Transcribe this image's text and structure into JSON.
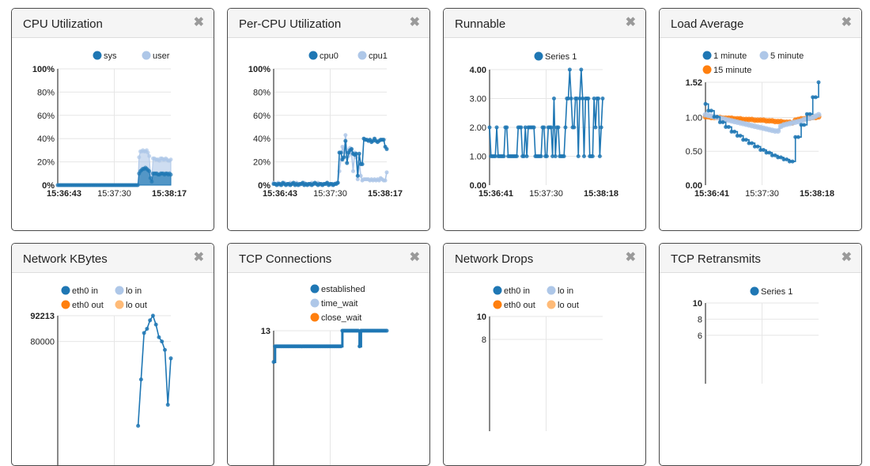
{
  "dashboard": {
    "close_glyph": "✖",
    "cards": [
      {
        "title": "CPU Utilization"
      },
      {
        "title": "Per-CPU Utilization"
      },
      {
        "title": "Runnable"
      },
      {
        "title": "Load Average"
      },
      {
        "title": "Network KBytes"
      },
      {
        "title": "TCP Connections"
      },
      {
        "title": "Network Drops"
      },
      {
        "title": "TCP Retransmits"
      }
    ]
  },
  "colors": {
    "dark_blue": "#1f77b4",
    "light_blue": "#aec7e8",
    "orange": "#ff7f0e",
    "light_orange": "#ffbb78"
  },
  "chart_data": [
    {
      "type": "area",
      "title": "CPU Utilization",
      "legend": [
        {
          "name": "sys",
          "color": "#1f77b4"
        },
        {
          "name": "user",
          "color": "#aec7e8"
        }
      ],
      "x_ticks": [
        "15:36:43",
        "15:37:30",
        "15:38:17"
      ],
      "x_tick_bold": [
        true,
        false,
        true
      ],
      "y_ticks": [
        "100%",
        "80%",
        "60%",
        "40%",
        "20%",
        "0%"
      ],
      "ylim": [
        0,
        100
      ],
      "stacked": true,
      "series": [
        {
          "name": "sys",
          "values": [
            0,
            0,
            0,
            0,
            0,
            0,
            0,
            0,
            0,
            0,
            0,
            0,
            0,
            0,
            0,
            0,
            0,
            0,
            0,
            0,
            0,
            0,
            0,
            0,
            0,
            0,
            0,
            0,
            0,
            0,
            0,
            0,
            0,
            0,
            0,
            0,
            0,
            0,
            0,
            0,
            0,
            0,
            0,
            0,
            0,
            0,
            0,
            0,
            0,
            0,
            0,
            0,
            0,
            0,
            0,
            0,
            0,
            0,
            0,
            0,
            0,
            0,
            0,
            0,
            10,
            12,
            13,
            14,
            14,
            15,
            14,
            13,
            12,
            6,
            3,
            10,
            10,
            10,
            10,
            9,
            9,
            10,
            10,
            10,
            9,
            10,
            10,
            9,
            10,
            9
          ]
        },
        {
          "name": "user",
          "values": [
            0,
            0,
            0,
            0,
            0,
            0,
            0,
            0,
            0,
            0,
            0,
            0,
            0,
            0,
            0,
            0,
            0,
            0,
            0,
            0,
            0,
            0,
            0,
            0,
            0,
            0,
            0,
            0,
            0,
            0,
            0,
            0,
            0,
            0,
            0,
            0,
            0,
            0,
            0,
            0,
            0,
            0,
            0,
            0,
            0,
            0,
            0,
            0,
            0,
            0,
            0,
            0,
            0,
            0,
            0,
            0,
            0,
            0,
            0,
            0,
            0,
            0,
            0,
            0,
            14,
            17,
            16,
            16,
            15,
            14,
            16,
            15,
            13,
            4,
            2,
            13,
            13,
            12,
            12,
            13,
            12,
            13,
            13,
            12,
            13,
            13,
            12,
            12,
            11,
            13
          ]
        }
      ]
    },
    {
      "type": "line",
      "title": "Per-CPU Utilization",
      "legend": [
        {
          "name": "cpu0",
          "color": "#1f77b4"
        },
        {
          "name": "cpu1",
          "color": "#aec7e8"
        }
      ],
      "x_ticks": [
        "15:36:43",
        "15:37:30",
        "15:38:17"
      ],
      "x_tick_bold": [
        true,
        false,
        true
      ],
      "y_ticks": [
        "100%",
        "80%",
        "60%",
        "40%",
        "20%",
        "0%"
      ],
      "ylim": [
        0,
        100
      ],
      "series": [
        {
          "name": "cpu0",
          "values": [
            1,
            1,
            0,
            1,
            1,
            0,
            2,
            1,
            0,
            1,
            1,
            0,
            1,
            2,
            0,
            1,
            0,
            1,
            1,
            2,
            0,
            1,
            0,
            1,
            1,
            0,
            1,
            2,
            1,
            0,
            1,
            1,
            0,
            1,
            1,
            2,
            0,
            1,
            1,
            0,
            1,
            1,
            2,
            28,
            28,
            22,
            24,
            38,
            19,
            28,
            30,
            31,
            27,
            26,
            27,
            8,
            27,
            18,
            18,
            40,
            39,
            39,
            38,
            39,
            37,
            38,
            40,
            38,
            37,
            38,
            39,
            39,
            39,
            33,
            31
          ]
        },
        {
          "name": "cpu1",
          "values": [
            2,
            1,
            1,
            2,
            0,
            1,
            1,
            2,
            1,
            1,
            0,
            2,
            1,
            1,
            1,
            2,
            1,
            0,
            1,
            1,
            2,
            1,
            1,
            1,
            0,
            2,
            1,
            1,
            1,
            2,
            1,
            0,
            1,
            1,
            1,
            2,
            1,
            1,
            0,
            1,
            1,
            2,
            2,
            12,
            22,
            33,
            28,
            43,
            30,
            25,
            32,
            27,
            12,
            28,
            24,
            5,
            20,
            8,
            4,
            5,
            5,
            5,
            5,
            4,
            5,
            4,
            5,
            4,
            5,
            4,
            6,
            5,
            4,
            4,
            11
          ]
        }
      ]
    },
    {
      "type": "line",
      "title": "Runnable",
      "legend": [
        {
          "name": "Series 1",
          "color": "#1f77b4"
        }
      ],
      "x_ticks": [
        "15:36:41",
        "15:37:30",
        "15:38:18"
      ],
      "x_tick_bold": [
        true,
        false,
        true
      ],
      "y_ticks": [
        "4.00",
        "3.00",
        "2.00",
        "1.00",
        "0.00"
      ],
      "y_tick_bold": [
        true,
        false,
        false,
        false,
        true
      ],
      "ylim": [
        0,
        4
      ],
      "series": [
        {
          "name": "Series 1",
          "values": [
            2,
            1,
            1,
            1,
            1,
            2,
            1,
            1,
            1,
            1,
            1,
            2,
            2,
            1,
            1,
            1,
            1,
            1,
            1,
            1,
            2,
            2,
            2,
            1,
            1,
            2,
            1,
            2,
            2,
            2,
            2,
            2,
            1,
            1,
            1,
            1,
            1,
            2,
            2,
            1,
            1,
            2,
            2,
            2,
            1,
            3,
            1,
            2,
            2,
            1,
            1,
            1,
            1,
            2,
            3,
            3,
            4,
            3,
            2,
            2,
            3,
            3,
            1,
            3,
            4,
            3,
            1,
            3,
            3,
            3,
            1,
            1,
            1,
            3,
            2,
            3,
            3,
            1,
            2,
            3
          ]
        }
      ]
    },
    {
      "type": "line",
      "title": "Load Average",
      "legend": [
        {
          "name": "1 minute",
          "color": "#1f77b4"
        },
        {
          "name": "5 minute",
          "color": "#aec7e8"
        },
        {
          "name": "15 minute",
          "color": "#ff7f0e"
        }
      ],
      "x_ticks": [
        "15:36:41",
        "15:37:30",
        "15:38:18"
      ],
      "x_tick_bold": [
        true,
        false,
        true
      ],
      "y_ticks": [
        "1.52",
        "1.00",
        "0.50",
        "0.00"
      ],
      "y_tick_bold": [
        true,
        false,
        false,
        true
      ],
      "ylim": [
        0,
        1.52
      ],
      "series": [
        {
          "name": "1 minute",
          "values": [
            1.2,
            1.1,
            1.1,
            1.01,
            1.01,
            0.93,
            0.93,
            0.86,
            0.86,
            0.79,
            0.79,
            0.73,
            0.73,
            0.67,
            0.67,
            0.62,
            0.62,
            0.57,
            0.57,
            0.52,
            0.52,
            0.48,
            0.48,
            0.44,
            0.44,
            0.41,
            0.41,
            0.38,
            0.38,
            0.35,
            0.35,
            0.71,
            0.71,
            0.89,
            0.89,
            1.05,
            1.05,
            1.3,
            1.3,
            1.52
          ]
        },
        {
          "name": "5 minute",
          "values": [
            1.04,
            1.03,
            1.02,
            1.01,
            1.0,
            0.99,
            0.98,
            0.97,
            0.96,
            0.95,
            0.94,
            0.93,
            0.92,
            0.91,
            0.9,
            0.89,
            0.88,
            0.87,
            0.86,
            0.85,
            0.84,
            0.83,
            0.82,
            0.81,
            0.8,
            0.8,
            0.87,
            0.89,
            0.9,
            0.91,
            0.92,
            0.93,
            0.94,
            0.95,
            0.97,
            0.98,
            0.99,
            1.0,
            1.02,
            1.04
          ]
        },
        {
          "name": "15 minute",
          "values": [
            1.01,
            1.01,
            1.0,
            1.0,
            1.0,
            1.0,
            0.99,
            0.99,
            0.99,
            0.99,
            0.98,
            0.98,
            0.98,
            0.97,
            0.97,
            0.97,
            0.97,
            0.96,
            0.96,
            0.96,
            0.96,
            0.95,
            0.95,
            0.95,
            0.94,
            0.94,
            0.94,
            0.93,
            0.93,
            0.93,
            0.92,
            0.96,
            0.97,
            0.98,
            0.98,
            0.99,
            0.99,
            1.0,
            1.0,
            1.01
          ]
        }
      ]
    },
    {
      "type": "line",
      "title": "Network KBytes",
      "legend": [
        {
          "name": "eth0 in",
          "color": "#1f77b4"
        },
        {
          "name": "lo in",
          "color": "#aec7e8"
        },
        {
          "name": "eth0 out",
          "color": "#ff7f0e"
        },
        {
          "name": "lo out",
          "color": "#ffbb78"
        }
      ],
      "x_ticks": [],
      "y_ticks": [
        "92213",
        "80000"
      ],
      "y_tick_bold": [
        true,
        false
      ],
      "ylim": [
        0,
        92213
      ],
      "series": [
        {
          "name": "eth0 in",
          "values": [
            null,
            null,
            null,
            null,
            null,
            null,
            null,
            null,
            null,
            null,
            null,
            null,
            null,
            null,
            null,
            null,
            null,
            null,
            null,
            null,
            null,
            null,
            null,
            null,
            null,
            null,
            null,
            40000,
            62000,
            84000,
            86000,
            90000,
            92213,
            88000,
            82000,
            80000,
            76000,
            50000,
            72000
          ]
        }
      ]
    },
    {
      "type": "line",
      "title": "TCP Connections",
      "legend": [
        {
          "name": "established",
          "color": "#1f77b4"
        },
        {
          "name": "time_wait",
          "color": "#aec7e8"
        },
        {
          "name": "close_wait",
          "color": "#ff7f0e"
        }
      ],
      "x_ticks": [],
      "y_ticks": [
        "13"
      ],
      "y_tick_bold": [
        true
      ],
      "ylim": [
        0,
        13
      ],
      "series": [
        {
          "name": "established",
          "values": [
            11,
            12,
            12,
            12,
            12,
            12,
            12,
            12,
            12,
            12,
            12,
            12,
            12,
            12,
            12,
            12,
            12,
            12,
            12,
            12,
            12,
            12,
            12,
            12,
            12,
            12,
            12,
            12,
            12,
            12,
            12,
            12,
            12,
            12,
            12,
            12,
            12,
            12,
            12,
            12,
            12,
            12,
            12,
            12,
            12,
            12,
            12,
            12,
            13,
            13,
            13,
            13,
            13,
            13,
            13,
            13,
            13,
            13,
            13,
            13,
            12,
            13,
            13,
            13,
            13,
            13,
            13,
            13,
            13,
            13,
            13,
            13,
            13,
            13,
            13,
            13,
            13,
            13,
            13,
            13
          ]
        }
      ]
    },
    {
      "type": "line",
      "title": "Network Drops",
      "legend": [
        {
          "name": "eth0 in",
          "color": "#1f77b4"
        },
        {
          "name": "lo in",
          "color": "#aec7e8"
        },
        {
          "name": "eth0 out",
          "color": "#ff7f0e"
        },
        {
          "name": "lo out",
          "color": "#ffbb78"
        }
      ],
      "x_ticks": [],
      "y_ticks": [
        "10",
        "8"
      ],
      "y_tick_bold": [
        true,
        false
      ],
      "ylim": [
        0,
        10
      ],
      "series": []
    },
    {
      "type": "line",
      "title": "TCP Retransmits",
      "legend": [
        {
          "name": "Series 1",
          "color": "#1f77b4"
        }
      ],
      "x_ticks": [],
      "y_ticks": [
        "10",
        "8",
        "6"
      ],
      "y_tick_bold": [
        true,
        false,
        false
      ],
      "ylim": [
        0,
        10
      ],
      "series": []
    }
  ]
}
